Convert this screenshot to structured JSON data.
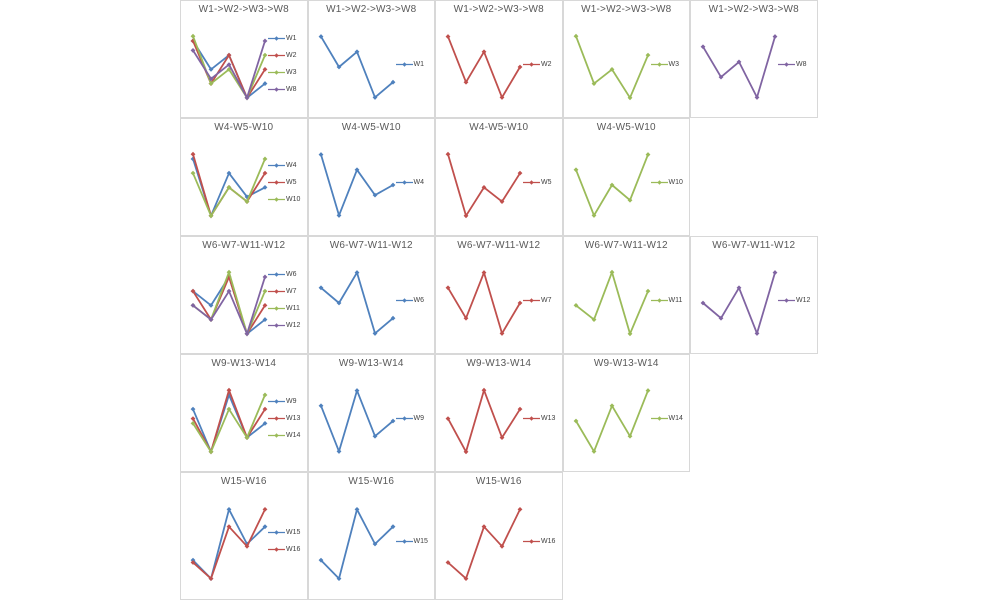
{
  "palette": {
    "series_blue": "#4F81BD",
    "series_red": "#C0504D",
    "series_green": "#9BBB59",
    "series_purple": "#8064A2",
    "title_text": "#595959",
    "legend_text": "#404040",
    "chart_border": "#d8d8d8",
    "background": "#ffffff"
  },
  "chart_data": [
    {
      "type": "line",
      "grid_row": 0,
      "grid_col": 0,
      "title": "W1->W2->W3->W8",
      "x": [
        1,
        2,
        3,
        4,
        5
      ],
      "legend_position": "right",
      "axes_hidden": true,
      "grid": "off",
      "series": [
        {
          "name": "W1",
          "color": "#4F81BD",
          "values": [
            8,
            5,
            6.5,
            2,
            3.5
          ]
        },
        {
          "name": "W2",
          "color": "#C0504D",
          "values": [
            8,
            3.5,
            6.5,
            2,
            5
          ]
        },
        {
          "name": "W3",
          "color": "#9BBB59",
          "values": [
            8.5,
            3.5,
            5,
            2,
            6.5
          ]
        },
        {
          "name": "W8",
          "color": "#8064A2",
          "values": [
            7,
            4,
            5.5,
            2,
            8
          ]
        }
      ]
    },
    {
      "type": "line",
      "grid_row": 0,
      "grid_col": 1,
      "title": "W1->W2->W3->W8",
      "x": [
        1,
        2,
        3,
        4,
        5
      ],
      "legend_position": "right",
      "axes_hidden": true,
      "grid": "off",
      "series": [
        {
          "name": "W1",
          "color": "#4F81BD",
          "values": [
            8,
            5,
            6.5,
            2,
            3.5
          ]
        }
      ]
    },
    {
      "type": "line",
      "grid_row": 0,
      "grid_col": 2,
      "title": "W1->W2->W3->W8",
      "x": [
        1,
        2,
        3,
        4,
        5
      ],
      "legend_position": "right",
      "axes_hidden": true,
      "grid": "off",
      "series": [
        {
          "name": "W2",
          "color": "#C0504D",
          "values": [
            8,
            3.5,
            6.5,
            2,
            5
          ]
        }
      ]
    },
    {
      "type": "line",
      "grid_row": 0,
      "grid_col": 3,
      "title": "W1->W2->W3->W8",
      "x": [
        1,
        2,
        3,
        4,
        5
      ],
      "legend_position": "right",
      "axes_hidden": true,
      "grid": "off",
      "series": [
        {
          "name": "W3",
          "color": "#9BBB59",
          "values": [
            8.5,
            3.5,
            5,
            2,
            6.5
          ]
        }
      ]
    },
    {
      "type": "line",
      "grid_row": 0,
      "grid_col": 4,
      "title": "W1->W2->W3->W8",
      "x": [
        1,
        2,
        3,
        4,
        5
      ],
      "legend_position": "right",
      "axes_hidden": true,
      "grid": "off",
      "series": [
        {
          "name": "W8",
          "color": "#8064A2",
          "values": [
            7,
            4,
            5.5,
            2,
            8
          ]
        }
      ]
    },
    {
      "type": "line",
      "grid_row": 1,
      "grid_col": 0,
      "title": "W4-W5-W10",
      "x": [
        1,
        2,
        3,
        4,
        5
      ],
      "legend_position": "right",
      "axes_hidden": true,
      "grid": "off",
      "series": [
        {
          "name": "W4",
          "color": "#4F81BD",
          "values": [
            8,
            2,
            6.5,
            4,
            5
          ]
        },
        {
          "name": "W5",
          "color": "#C0504D",
          "values": [
            8.5,
            2,
            5,
            3.5,
            6.5
          ]
        },
        {
          "name": "W10",
          "color": "#9BBB59",
          "values": [
            6.5,
            2,
            5,
            3.5,
            8
          ]
        }
      ]
    },
    {
      "type": "line",
      "grid_row": 1,
      "grid_col": 1,
      "title": "W4-W5-W10",
      "x": [
        1,
        2,
        3,
        4,
        5
      ],
      "legend_position": "right",
      "axes_hidden": true,
      "grid": "off",
      "series": [
        {
          "name": "W4",
          "color": "#4F81BD",
          "values": [
            8,
            2,
            6.5,
            4,
            5
          ]
        }
      ]
    },
    {
      "type": "line",
      "grid_row": 1,
      "grid_col": 2,
      "title": "W4-W5-W10",
      "x": [
        1,
        2,
        3,
        4,
        5
      ],
      "legend_position": "right",
      "axes_hidden": true,
      "grid": "off",
      "series": [
        {
          "name": "W5",
          "color": "#C0504D",
          "values": [
            8.5,
            2,
            5,
            3.5,
            6.5
          ]
        }
      ]
    },
    {
      "type": "line",
      "grid_row": 1,
      "grid_col": 3,
      "title": "W4-W5-W10",
      "x": [
        1,
        2,
        3,
        4,
        5
      ],
      "legend_position": "right",
      "axes_hidden": true,
      "grid": "off",
      "series": [
        {
          "name": "W10",
          "color": "#9BBB59",
          "values": [
            6.5,
            2,
            5,
            3.5,
            8
          ]
        }
      ]
    },
    {
      "type": "line",
      "grid_row": 2,
      "grid_col": 0,
      "title": "W6-W7-W11-W12",
      "x": [
        1,
        2,
        3,
        4,
        5
      ],
      "legend_position": "right",
      "axes_hidden": true,
      "grid": "off",
      "series": [
        {
          "name": "W6",
          "color": "#4F81BD",
          "values": [
            6.5,
            5,
            8,
            2,
            3.5
          ]
        },
        {
          "name": "W7",
          "color": "#C0504D",
          "values": [
            6.5,
            3.5,
            8,
            2,
            5
          ]
        },
        {
          "name": "W11",
          "color": "#9BBB59",
          "values": [
            5,
            3.5,
            8.5,
            2,
            6.5
          ]
        },
        {
          "name": "W12",
          "color": "#8064A2",
          "values": [
            5,
            3.5,
            6.5,
            2,
            8
          ]
        }
      ]
    },
    {
      "type": "line",
      "grid_row": 2,
      "grid_col": 1,
      "title": "W6-W7-W11-W12",
      "x": [
        1,
        2,
        3,
        4,
        5
      ],
      "legend_position": "right",
      "axes_hidden": true,
      "grid": "off",
      "series": [
        {
          "name": "W6",
          "color": "#4F81BD",
          "values": [
            6.5,
            5,
            8,
            2,
            3.5
          ]
        }
      ]
    },
    {
      "type": "line",
      "grid_row": 2,
      "grid_col": 2,
      "title": "W6-W7-W11-W12",
      "x": [
        1,
        2,
        3,
        4,
        5
      ],
      "legend_position": "right",
      "axes_hidden": true,
      "grid": "off",
      "series": [
        {
          "name": "W7",
          "color": "#C0504D",
          "values": [
            6.5,
            3.5,
            8,
            2,
            5
          ]
        }
      ]
    },
    {
      "type": "line",
      "grid_row": 2,
      "grid_col": 3,
      "title": "W6-W7-W11-W12",
      "x": [
        1,
        2,
        3,
        4,
        5
      ],
      "legend_position": "right",
      "axes_hidden": true,
      "grid": "off",
      "series": [
        {
          "name": "W11",
          "color": "#9BBB59",
          "values": [
            5,
            3.5,
            8.5,
            2,
            6.5
          ]
        }
      ]
    },
    {
      "type": "line",
      "grid_row": 2,
      "grid_col": 4,
      "title": "W6-W7-W11-W12",
      "x": [
        1,
        2,
        3,
        4,
        5
      ],
      "legend_position": "right",
      "axes_hidden": true,
      "grid": "off",
      "series": [
        {
          "name": "W12",
          "color": "#8064A2",
          "values": [
            5,
            3.5,
            6.5,
            2,
            8
          ]
        }
      ]
    },
    {
      "type": "line",
      "grid_row": 3,
      "grid_col": 0,
      "title": "W9-W13-W14",
      "x": [
        1,
        2,
        3,
        4,
        5
      ],
      "legend_position": "right",
      "axes_hidden": true,
      "grid": "off",
      "series": [
        {
          "name": "W9",
          "color": "#4F81BD",
          "values": [
            6.5,
            2,
            8,
            3.5,
            5
          ]
        },
        {
          "name": "W13",
          "color": "#C0504D",
          "values": [
            5.5,
            2,
            8.5,
            3.5,
            6.5
          ]
        },
        {
          "name": "W14",
          "color": "#9BBB59",
          "values": [
            5,
            2,
            6.5,
            3.5,
            8
          ]
        }
      ]
    },
    {
      "type": "line",
      "grid_row": 3,
      "grid_col": 1,
      "title": "W9-W13-W14",
      "x": [
        1,
        2,
        3,
        4,
        5
      ],
      "legend_position": "right",
      "axes_hidden": true,
      "grid": "off",
      "series": [
        {
          "name": "W9",
          "color": "#4F81BD",
          "values": [
            6.5,
            2,
            8,
            3.5,
            5
          ]
        }
      ]
    },
    {
      "type": "line",
      "grid_row": 3,
      "grid_col": 2,
      "title": "W9-W13-W14",
      "x": [
        1,
        2,
        3,
        4,
        5
      ],
      "legend_position": "right",
      "axes_hidden": true,
      "grid": "off",
      "series": [
        {
          "name": "W13",
          "color": "#C0504D",
          "values": [
            5.5,
            2,
            8.5,
            3.5,
            6.5
          ]
        }
      ]
    },
    {
      "type": "line",
      "grid_row": 3,
      "grid_col": 3,
      "title": "W9-W13-W14",
      "x": [
        1,
        2,
        3,
        4,
        5
      ],
      "legend_position": "right",
      "axes_hidden": true,
      "grid": "off",
      "series": [
        {
          "name": "W14",
          "color": "#9BBB59",
          "values": [
            5,
            2,
            6.5,
            3.5,
            8
          ]
        }
      ]
    },
    {
      "type": "line",
      "grid_row": 4,
      "grid_col": 0,
      "title": "W15-W16",
      "x": [
        1,
        2,
        3,
        4,
        5
      ],
      "legend_position": "right",
      "axes_hidden": true,
      "grid": "off",
      "series": [
        {
          "name": "W15",
          "color": "#4F81BD",
          "values": [
            3.6,
            2,
            8,
            5,
            6.5
          ]
        },
        {
          "name": "W16",
          "color": "#C0504D",
          "values": [
            3.4,
            2,
            6.5,
            4.8,
            8
          ]
        }
      ]
    },
    {
      "type": "line",
      "grid_row": 4,
      "grid_col": 1,
      "title": "W15-W16",
      "x": [
        1,
        2,
        3,
        4,
        5
      ],
      "legend_position": "right",
      "axes_hidden": true,
      "grid": "off",
      "series": [
        {
          "name": "W15",
          "color": "#4F81BD",
          "values": [
            3.6,
            2,
            8,
            5,
            6.5
          ]
        }
      ]
    },
    {
      "type": "line",
      "grid_row": 4,
      "grid_col": 2,
      "title": "W15-W16",
      "x": [
        1,
        2,
        3,
        4,
        5
      ],
      "legend_position": "right",
      "axes_hidden": true,
      "grid": "off",
      "series": [
        {
          "name": "W16",
          "color": "#C0504D",
          "values": [
            3.4,
            2,
            6.5,
            4.8,
            8
          ]
        }
      ]
    }
  ]
}
